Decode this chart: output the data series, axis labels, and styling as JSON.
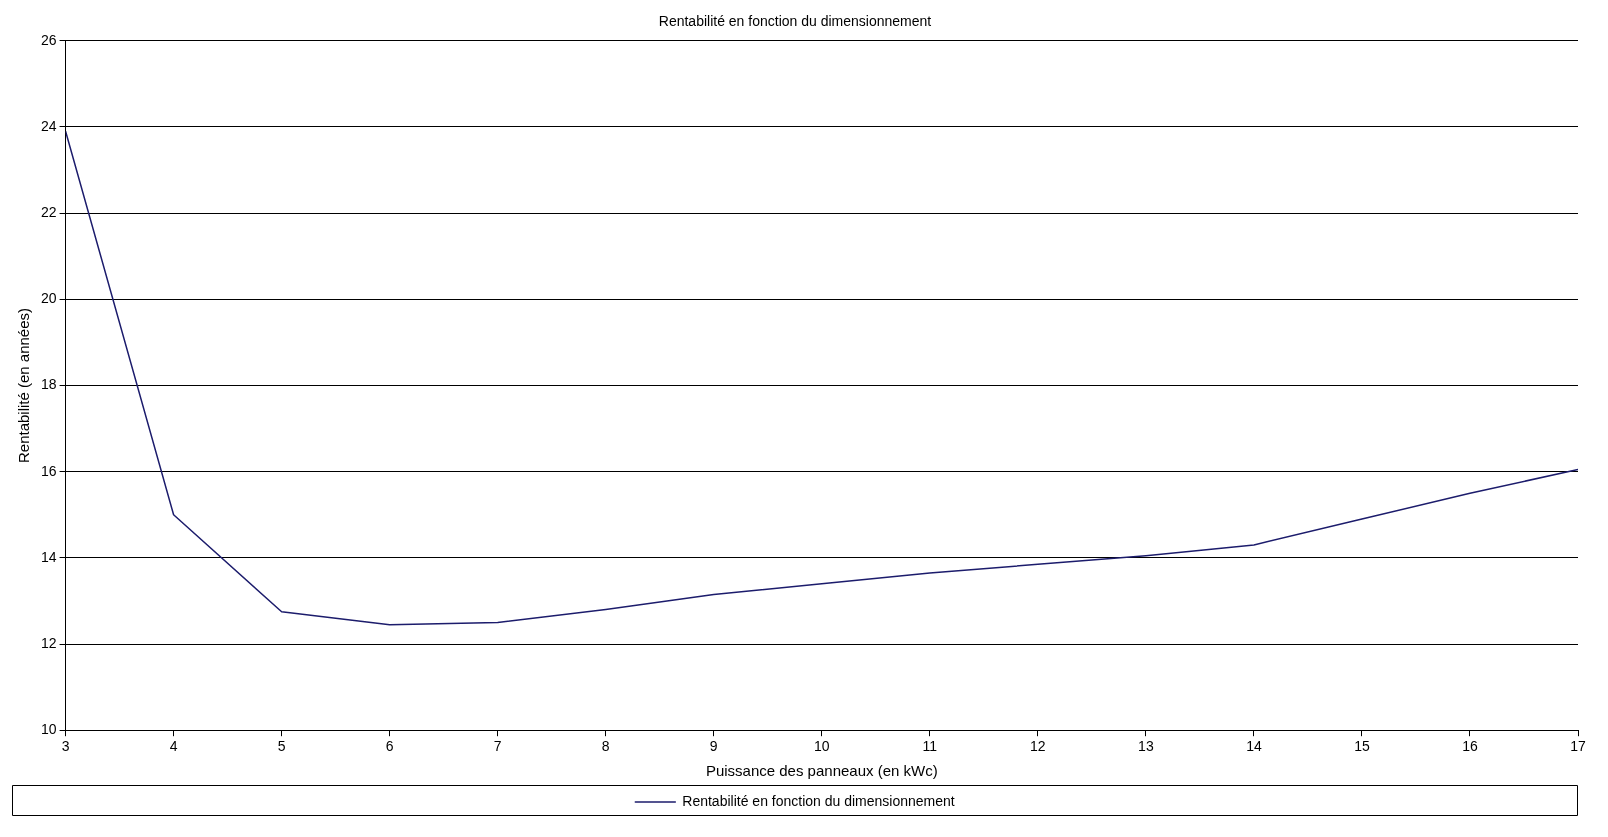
{
  "chart_data": {
    "type": "line",
    "title": "Rentabilité en fonction du dimensionnement",
    "xlabel": "Puissance des panneaux (en kWc)",
    "ylabel": "Rentabilité (en années)",
    "x": [
      3,
      4,
      5,
      6,
      7,
      8,
      9,
      10,
      11,
      12,
      13,
      14,
      15,
      16,
      17
    ],
    "series": [
      {
        "name": "Rentabilité en fonction du dimensionnement",
        "color": "#1c1c6c",
        "values": [
          23.9,
          15.0,
          12.75,
          12.45,
          12.5,
          12.8,
          13.15,
          13.4,
          13.65,
          13.85,
          14.05,
          14.3,
          14.9,
          15.5,
          16.05
        ]
      }
    ],
    "xlim": [
      3,
      17
    ],
    "xticks": [
      3,
      4,
      5,
      6,
      7,
      8,
      9,
      10,
      11,
      12,
      13,
      14,
      15,
      16,
      17
    ],
    "ylim": [
      10,
      26
    ],
    "yticks": [
      10,
      12,
      14,
      16,
      18,
      20,
      22,
      24,
      26
    ],
    "grid": "y",
    "legend": "bottom",
    "marker": "none",
    "line_style": "solid"
  }
}
